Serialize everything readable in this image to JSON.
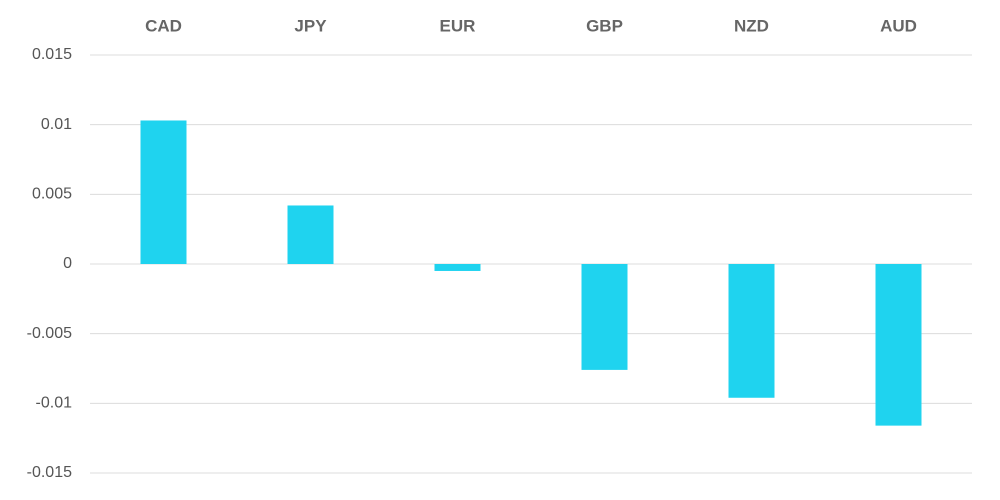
{
  "chart_data": {
    "type": "bar",
    "categories": [
      "CAD",
      "JPY",
      "EUR",
      "GBP",
      "NZD",
      "AUD"
    ],
    "values": [
      0.0103,
      0.0042,
      -0.0005,
      -0.0076,
      -0.0096,
      -0.0116
    ],
    "color": "#1fd3ef",
    "ylim": [
      -0.015,
      0.015
    ],
    "yticks": [
      -0.015,
      -0.01,
      -0.005,
      0,
      0.005,
      0.01,
      0.015
    ],
    "grid": true
  }
}
